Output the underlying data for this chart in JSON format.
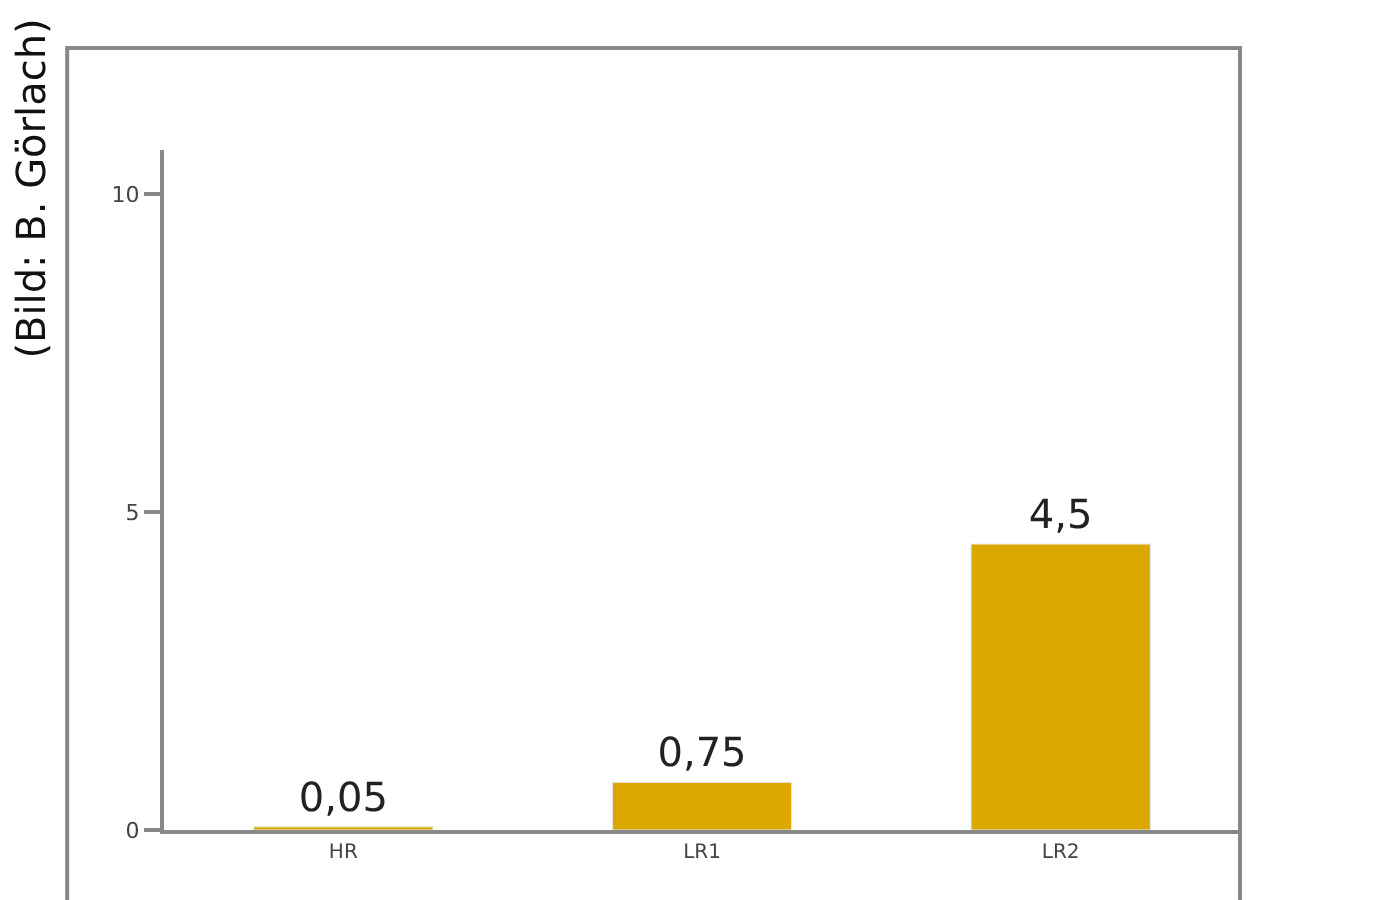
{
  "chart_data": {
    "type": "bar",
    "categories": [
      "HR",
      "LR1",
      "LR2"
    ],
    "values": [
      0.05,
      0.75,
      4.5
    ],
    "value_labels": [
      "0,05",
      "0,75",
      "4,5"
    ],
    "color": "#dba800",
    "ylim": [
      0,
      10.7
    ],
    "yticks": [
      0,
      5,
      10
    ],
    "legend": false,
    "annotations": [
      "(Bild: B. Görlach)"
    ]
  }
}
